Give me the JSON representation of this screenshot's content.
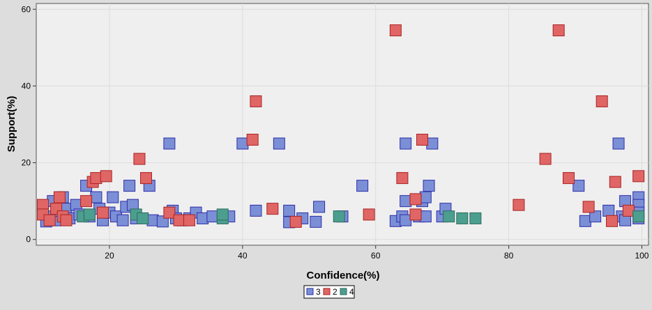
{
  "chart_data": {
    "type": "scatter",
    "xlabel": "Confidence(%)",
    "ylabel": "Support(%)",
    "xlim": [
      9,
      101
    ],
    "ylim": [
      -1.5,
      61.5
    ],
    "xticks": [
      20,
      40,
      60,
      80,
      100
    ],
    "yticks": [
      0,
      20,
      40,
      60
    ],
    "grid": true,
    "legend_position": "bottom-center",
    "series": [
      {
        "name": "3",
        "color": "#7b8fd6",
        "edge": "#2e2ea8",
        "points": [
          [
            10.5,
            4.7
          ],
          [
            11,
            6
          ],
          [
            11.5,
            10
          ],
          [
            12,
            5
          ],
          [
            12.5,
            7.5
          ],
          [
            13,
            11
          ],
          [
            13.5,
            8
          ],
          [
            14,
            5.5
          ],
          [
            15,
            9
          ],
          [
            15.5,
            6.5
          ],
          [
            16.5,
            14
          ],
          [
            17,
            6
          ],
          [
            18,
            11
          ],
          [
            18.5,
            8
          ],
          [
            19,
            5
          ],
          [
            20,
            7
          ],
          [
            20.5,
            11
          ],
          [
            21,
            6
          ],
          [
            22,
            5
          ],
          [
            22.5,
            8.5
          ],
          [
            23,
            14
          ],
          [
            23.5,
            9
          ],
          [
            24,
            5.5
          ],
          [
            26,
            14
          ],
          [
            26.5,
            5
          ],
          [
            28,
            4.7
          ],
          [
            29,
            25
          ],
          [
            29.5,
            7.5
          ],
          [
            30,
            5.5
          ],
          [
            31,
            5
          ],
          [
            32,
            5.5
          ],
          [
            33,
            7
          ],
          [
            34,
            5.5
          ],
          [
            35.5,
            6
          ],
          [
            38,
            6
          ],
          [
            40,
            25
          ],
          [
            42,
            7.5
          ],
          [
            45.5,
            25
          ],
          [
            47,
            7.5
          ],
          [
            47,
            4.5
          ],
          [
            49,
            5.5
          ],
          [
            51,
            4.6
          ],
          [
            51.5,
            8.5
          ],
          [
            55,
            6
          ],
          [
            58,
            14
          ],
          [
            63,
            4.8
          ],
          [
            64,
            6
          ],
          [
            64.5,
            10
          ],
          [
            64.5,
            25
          ],
          [
            64.5,
            5
          ],
          [
            66.5,
            6
          ],
          [
            67,
            10
          ],
          [
            67.5,
            11
          ],
          [
            67.5,
            6
          ],
          [
            68,
            14
          ],
          [
            68.5,
            25
          ],
          [
            70,
            6
          ],
          [
            70.5,
            8
          ],
          [
            90.5,
            14
          ],
          [
            91.5,
            4.8
          ],
          [
            93,
            6
          ],
          [
            95,
            7.5
          ],
          [
            96.5,
            25
          ],
          [
            97,
            6
          ],
          [
            97.5,
            5
          ],
          [
            97.5,
            10
          ],
          [
            99.5,
            11
          ],
          [
            99.5,
            9
          ],
          [
            99.5,
            7
          ],
          [
            99.5,
            5.5
          ]
        ]
      },
      {
        "name": "2",
        "color": "#e06666",
        "edge": "#aa2222",
        "points": [
          [
            10,
            9
          ],
          [
            10,
            6.5
          ],
          [
            11,
            5
          ],
          [
            12,
            8
          ],
          [
            12.5,
            11
          ],
          [
            13,
            6
          ],
          [
            13.5,
            5
          ],
          [
            16.5,
            10
          ],
          [
            17.5,
            15
          ],
          [
            18,
            16
          ],
          [
            19,
            7
          ],
          [
            19.5,
            16.5
          ],
          [
            24.5,
            21
          ],
          [
            25.5,
            16
          ],
          [
            29,
            7
          ],
          [
            30.5,
            5
          ],
          [
            32,
            5
          ],
          [
            41.5,
            26
          ],
          [
            42,
            36
          ],
          [
            44.5,
            8
          ],
          [
            48,
            4.6
          ],
          [
            59,
            6.5
          ],
          [
            63,
            54.5
          ],
          [
            64,
            16
          ],
          [
            66,
            6.5
          ],
          [
            66,
            10.5
          ],
          [
            67,
            26
          ],
          [
            81.5,
            9
          ],
          [
            85.5,
            21
          ],
          [
            87.5,
            54.5
          ],
          [
            89,
            16
          ],
          [
            92,
            8.5
          ],
          [
            94,
            36
          ],
          [
            95.5,
            4.8
          ],
          [
            96,
            15
          ],
          [
            98,
            7.5
          ],
          [
            99.5,
            16.5
          ]
        ]
      },
      {
        "name": "4",
        "color": "#4c9e8e",
        "edge": "#2e6b60",
        "points": [
          [
            16,
            6
          ],
          [
            17,
            6.5
          ],
          [
            24,
            6.5
          ],
          [
            25,
            5.5
          ],
          [
            37,
            5.5
          ],
          [
            37,
            6.5
          ],
          [
            54.5,
            6
          ],
          [
            71,
            6
          ],
          [
            73,
            5.5
          ],
          [
            75,
            5.5
          ],
          [
            99.5,
            6
          ]
        ]
      }
    ]
  }
}
